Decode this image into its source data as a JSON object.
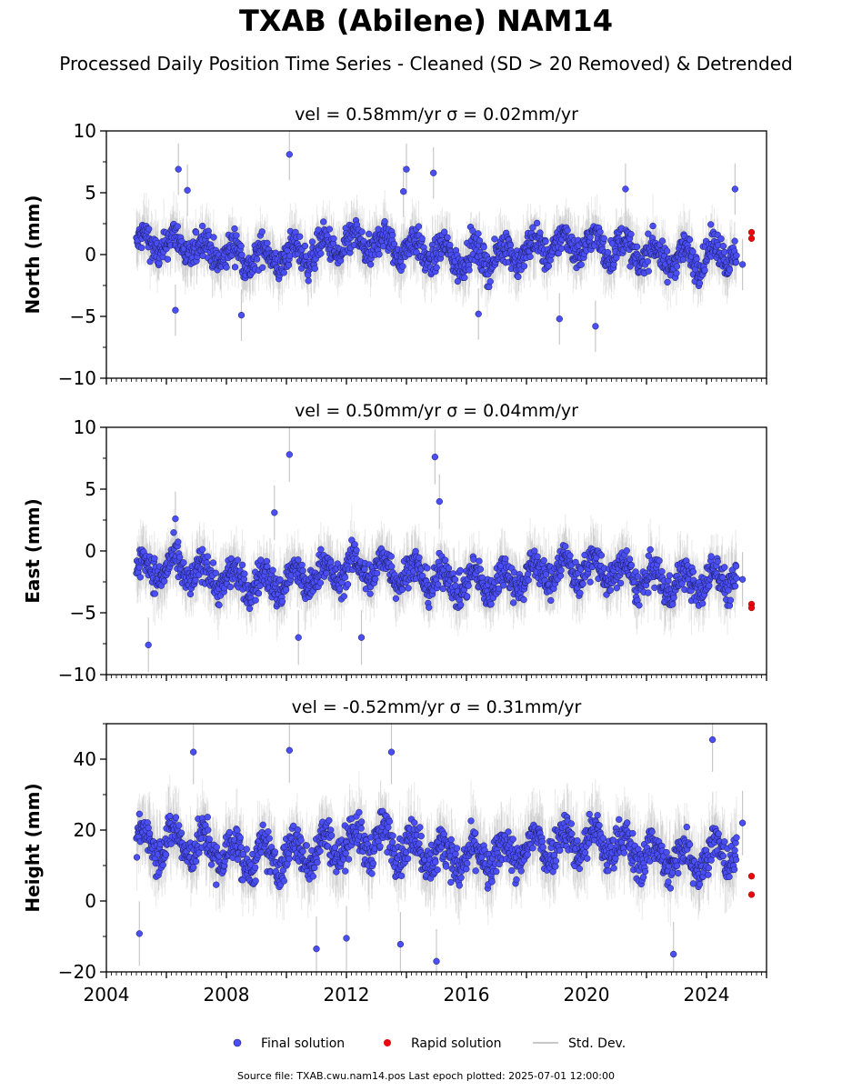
{
  "title": "TXAB (Abilene) NAM14",
  "subtitle": "Processed Daily Position Time Series - Cleaned (SD > 20 Removed) & Detrended",
  "footer": "Source file: TXAB.cwu.nam14.pos  Last epoch plotted: 2025-07-01 12:00:00",
  "colors": {
    "final": "#4a4ef5",
    "rapid": "#e8090e",
    "stddev": "#c8c8c8"
  },
  "chart_data": [
    {
      "type": "scatter",
      "title": "vel = 0.58mm/yr   σ = 0.02mm/yr",
      "ylabel": "North (mm)",
      "xlim": [
        2004,
        2026
      ],
      "ylim": [
        -10,
        10
      ],
      "yticks": [
        -10,
        -5,
        0,
        5,
        10
      ],
      "x_range_final": [
        2005.0,
        2025.0
      ],
      "final_band": {
        "center": 0.3,
        "spread": 1.6
      },
      "final_outliers": [
        {
          "x": 2006.4,
          "y": 6.9
        },
        {
          "x": 2006.7,
          "y": 5.2
        },
        {
          "x": 2010.1,
          "y": 8.1
        },
        {
          "x": 2013.9,
          "y": 5.1
        },
        {
          "x": 2014.0,
          "y": 6.9
        },
        {
          "x": 2014.9,
          "y": 6.6
        },
        {
          "x": 2021.3,
          "y": 5.3
        },
        {
          "x": 2024.95,
          "y": 5.3
        },
        {
          "x": 2006.3,
          "y": -4.5
        },
        {
          "x": 2008.5,
          "y": -4.9
        },
        {
          "x": 2016.4,
          "y": -4.8
        },
        {
          "x": 2019.1,
          "y": -5.2
        },
        {
          "x": 2020.3,
          "y": -5.8
        },
        {
          "x": 2025.2,
          "y": -0.8
        }
      ],
      "rapid": [
        {
          "x": 2025.5,
          "y": 1.8
        },
        {
          "x": 2025.5,
          "y": 1.3
        }
      ]
    },
    {
      "type": "scatter",
      "title": "vel = 0.50mm/yr   σ = 0.04mm/yr",
      "ylabel": "East (mm)",
      "xlim": [
        2004,
        2026
      ],
      "ylim": [
        -10,
        10
      ],
      "yticks": [
        -10,
        -5,
        0,
        5,
        10
      ],
      "x_range_final": [
        2005.0,
        2025.0
      ],
      "final_band": {
        "center": -2.0,
        "spread": 1.7
      },
      "final_outliers": [
        {
          "x": 2010.1,
          "y": 7.8
        },
        {
          "x": 2014.95,
          "y": 7.6
        },
        {
          "x": 2015.1,
          "y": 4.0
        },
        {
          "x": 2006.3,
          "y": 2.6
        },
        {
          "x": 2009.6,
          "y": 3.1
        },
        {
          "x": 2005.4,
          "y": -7.6
        },
        {
          "x": 2010.4,
          "y": -7.0
        },
        {
          "x": 2012.5,
          "y": -7.0
        },
        {
          "x": 2025.2,
          "y": -2.3
        }
      ],
      "rapid": [
        {
          "x": 2025.5,
          "y": -4.3
        },
        {
          "x": 2025.5,
          "y": -4.6
        }
      ]
    },
    {
      "type": "scatter",
      "title": "vel = -0.52mm/yr   σ = 0.31mm/yr",
      "ylabel": "Height (mm)",
      "xlabel": "",
      "xlim": [
        2004,
        2026
      ],
      "ylim": [
        -20,
        50
      ],
      "yticks": [
        -20,
        0,
        20,
        40
      ],
      "xticks": [
        2004,
        2008,
        2012,
        2016,
        2020,
        2024
      ],
      "x_range_final": [
        2005.0,
        2025.0
      ],
      "final_band": {
        "center": 14.5,
        "spread": 7.0
      },
      "final_outliers": [
        {
          "x": 2006.9,
          "y": 42.0
        },
        {
          "x": 2010.1,
          "y": 42.5
        },
        {
          "x": 2013.5,
          "y": 42.0
        },
        {
          "x": 2024.2,
          "y": 45.5
        },
        {
          "x": 2005.1,
          "y": -9.2
        },
        {
          "x": 2011.0,
          "y": -13.5
        },
        {
          "x": 2012.0,
          "y": -10.5
        },
        {
          "x": 2013.8,
          "y": -12.2
        },
        {
          "x": 2015.0,
          "y": -17.0
        },
        {
          "x": 2022.9,
          "y": -15.0
        },
        {
          "x": 2025.2,
          "y": 22.0
        }
      ],
      "rapid": [
        {
          "x": 2025.5,
          "y": 7.0
        },
        {
          "x": 2025.5,
          "y": 1.8
        }
      ]
    }
  ],
  "legend": {
    "placement": "bottom-center",
    "final_label": "Final solution",
    "rapid_label": "Rapid solution",
    "stddev_label": "Std. Dev."
  }
}
